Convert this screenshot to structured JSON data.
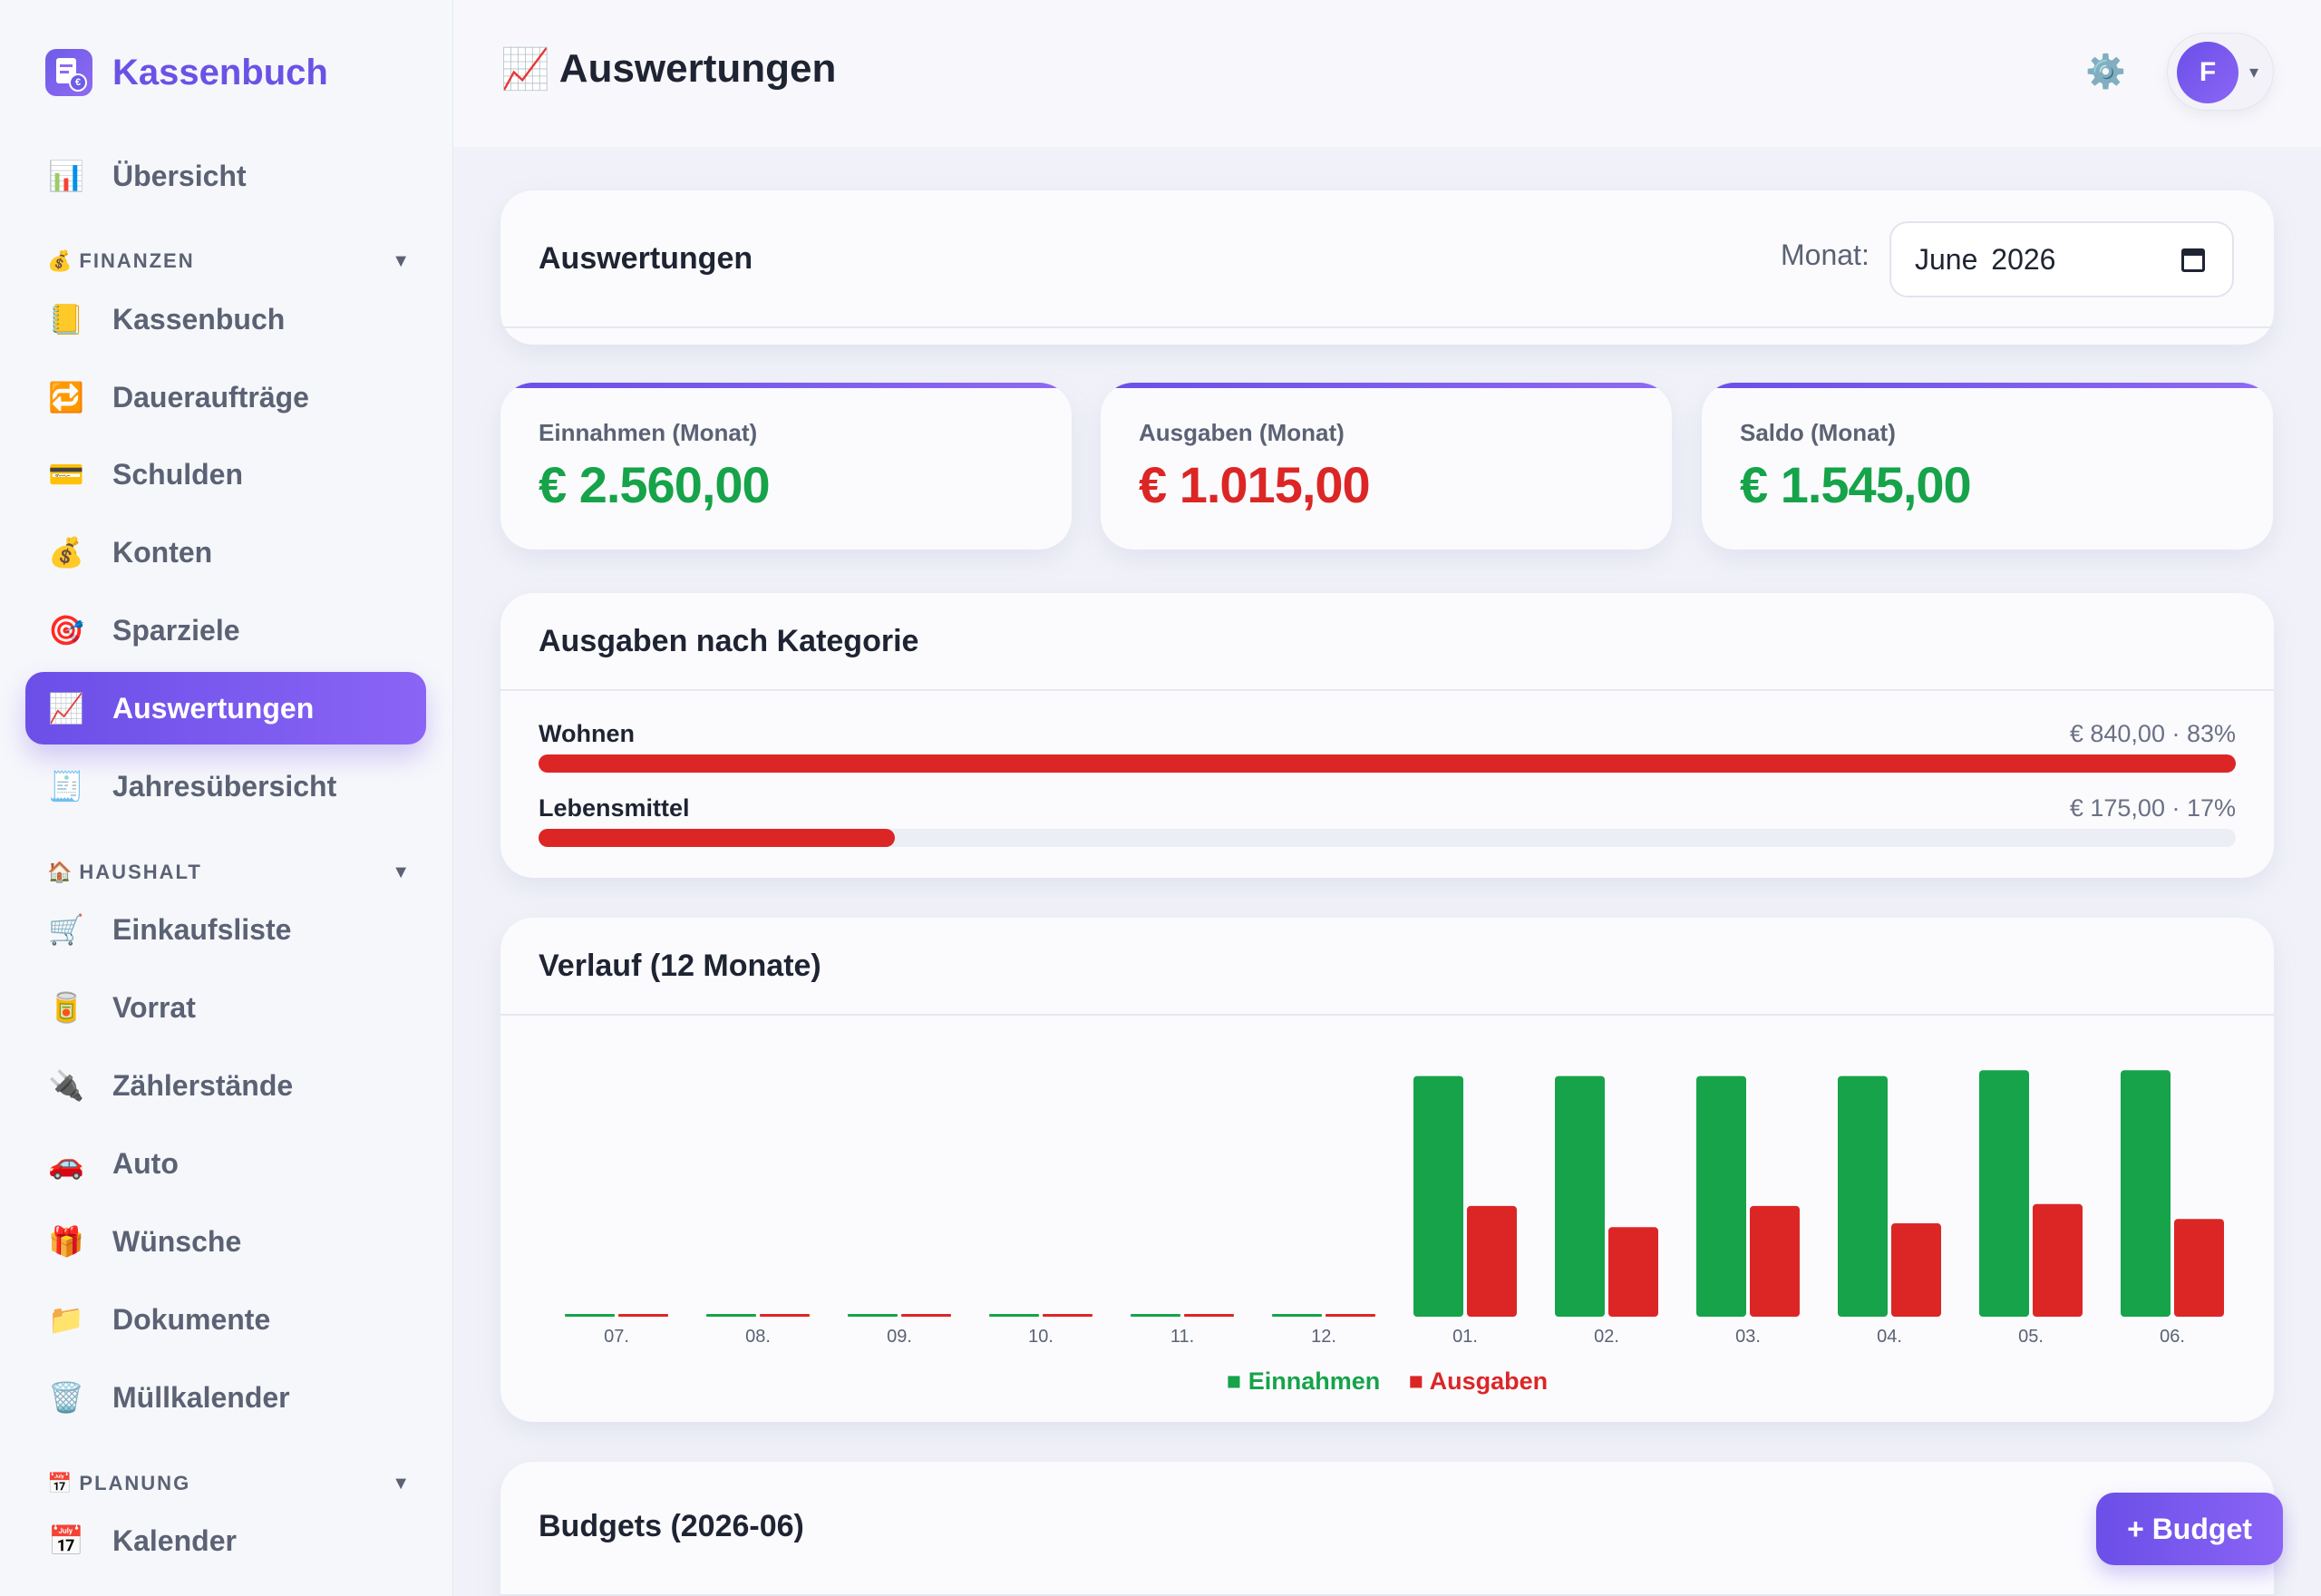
{
  "brand": {
    "name": "Kassenbuch",
    "logo_coin": "€"
  },
  "sidebar": {
    "overview": {
      "icon": "📊",
      "label": "Übersicht"
    },
    "sections": [
      {
        "icon": "💰",
        "label": "FINANZEN",
        "chevron": "▼"
      },
      {
        "icon": "🏠",
        "label": "HAUSHALT",
        "chevron": "▼"
      },
      {
        "icon": "📅",
        "label": "PLANUNG",
        "chevron": "▼"
      }
    ],
    "finanzen": [
      {
        "icon": "📒",
        "label": "Kassenbuch"
      },
      {
        "icon": "🔁",
        "label": "Daueraufträge"
      },
      {
        "icon": "💳",
        "label": "Schulden"
      },
      {
        "icon": "💰",
        "label": "Konten"
      },
      {
        "icon": "🎯",
        "label": "Sparziele"
      },
      {
        "icon": "📈",
        "label": "Auswertungen",
        "active": true
      },
      {
        "icon": "🧾",
        "label": "Jahresübersicht"
      }
    ],
    "haushalt": [
      {
        "icon": "🛒",
        "label": "Einkaufsliste"
      },
      {
        "icon": "🥫",
        "label": "Vorrat"
      },
      {
        "icon": "🔌",
        "label": "Zählerstände"
      },
      {
        "icon": "🚗",
        "label": "Auto"
      },
      {
        "icon": "🎁",
        "label": "Wünsche"
      },
      {
        "icon": "📁",
        "label": "Dokumente"
      },
      {
        "icon": "🗑️",
        "label": "Müllkalender"
      }
    ],
    "planung": [
      {
        "icon": "📅",
        "label": "Kalender"
      }
    ]
  },
  "header": {
    "title_icon": "📈",
    "title": "Auswertungen",
    "settings_icon": "⚙️",
    "user_initial": "F",
    "user_caret": "▾"
  },
  "filter_card": {
    "title": "Auswertungen",
    "month_label": "Monat:",
    "month_value": "June 2026"
  },
  "stats": [
    {
      "label": "Einnahmen (Monat)",
      "value": "€ 2.560,00",
      "color": "#16a34a"
    },
    {
      "label": "Ausgaben (Monat)",
      "value": "€ 1.015,00",
      "color": "#dc2626"
    },
    {
      "label": "Saldo (Monat)",
      "value": "€ 1.545,00",
      "color": "#16a34a"
    }
  ],
  "categories": {
    "title": "Ausgaben nach Kategorie",
    "items": [
      {
        "name": "Wohnen",
        "value": "€ 840,00 · 83%",
        "percent": 100,
        "color": "#dc2626"
      },
      {
        "name": "Lebensmittel",
        "value": "€ 175,00 · 17%",
        "percent": 21,
        "color": "#dc2626"
      }
    ]
  },
  "history": {
    "title": "Verlauf (12 Monate)",
    "legend_income": "■ Einnahmen",
    "legend_expense": "■ Ausgaben",
    "colors": {
      "income": "#16a34a",
      "expense": "#dc2626"
    }
  },
  "chart_data": {
    "type": "bar",
    "categories": [
      "07.",
      "08.",
      "09.",
      "10.",
      "11.",
      "12.",
      "01.",
      "02.",
      "03.",
      "04.",
      "05.",
      "06."
    ],
    "series": [
      {
        "name": "Einnahmen",
        "values": [
          0,
          0,
          0,
          0,
          0,
          0,
          2500,
          2500,
          2500,
          2500,
          2560,
          2560
        ]
      },
      {
        "name": "Ausgaben",
        "values": [
          0,
          0,
          0,
          0,
          0,
          0,
          1150,
          930,
          1150,
          970,
          1170,
          1015
        ]
      }
    ],
    "ylim": [
      0,
      2600
    ],
    "grid": false,
    "legend": "bottom-center"
  },
  "budgets": {
    "title": "Budgets (2026-06)",
    "add_label": "+ Budget"
  }
}
